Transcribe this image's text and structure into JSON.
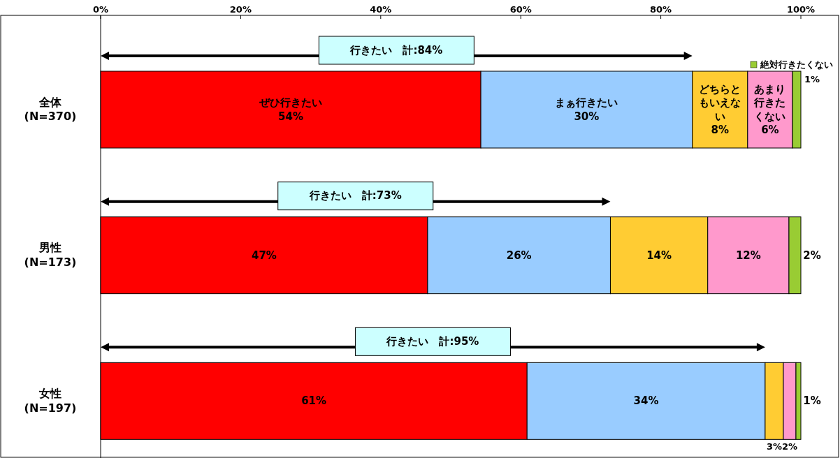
{
  "chart_data": {
    "type": "bar",
    "orientation": "horizontal",
    "stacked": true,
    "categories": [
      "全体\n(N=370)",
      "男性\n(N=173)",
      "女性\n(N=197)"
    ],
    "xlim": [
      0,
      100
    ],
    "xticks": [
      {
        "value": 0,
        "label": "0%"
      },
      {
        "value": 20,
        "label": "20%"
      },
      {
        "value": 40,
        "label": "40%"
      },
      {
        "value": 60,
        "label": "60%"
      },
      {
        "value": 80,
        "label": "80%"
      },
      {
        "value": 100,
        "label": "100%"
      }
    ],
    "grid": false,
    "series": [
      {
        "name": "ぜひ行きたい",
        "color": "#ff0000",
        "values": [
          54.3,
          46.7,
          60.9
        ],
        "value_labels": [
          "54%",
          "47%",
          "61%"
        ]
      },
      {
        "name": "まぁ行きたい",
        "color": "#99ccff",
        "values": [
          30.2,
          26.1,
          34.0
        ],
        "value_labels": [
          "30%",
          "26%",
          "34%"
        ]
      },
      {
        "name": "どちらともいえない",
        "color": "#ffcc33",
        "values": [
          7.9,
          13.9,
          2.6
        ],
        "value_labels": [
          "8%",
          "14%",
          "3%"
        ]
      },
      {
        "name": "あまり行きたくない",
        "color": "#ff99cc",
        "values": [
          6.4,
          11.6,
          1.8
        ],
        "value_labels": [
          "6%",
          "12%",
          "2%"
        ]
      },
      {
        "name": "絶対行きたくない",
        "color": "#99cc33",
        "values": [
          1.2,
          1.7,
          0.7
        ],
        "value_labels": [
          "1%",
          "2%",
          "1%"
        ]
      }
    ],
    "annotations": [
      "行きたい　計:84%",
      "行きたい　計:73%",
      "行きたい　計:95%"
    ]
  }
}
